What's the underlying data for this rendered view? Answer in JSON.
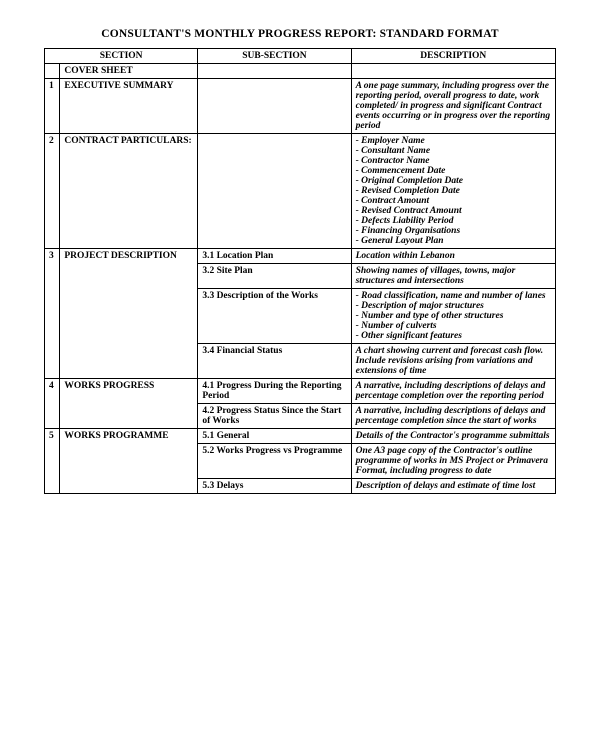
{
  "title": "CONSULTANT'S MONTHLY PROGRESS REPORT: STANDARD FORMAT",
  "headers": {
    "c1": "SECTION",
    "c2": "SUB-SECTION",
    "c3": "DESCRIPTION"
  },
  "cover": "COVER SHEET",
  "s1": {
    "num": "1",
    "name": "EXECUTIVE SUMMARY",
    "desc": "A one page summary, including progress over the reporting period, overall progress to date, work completed/ in progress and significant Contract events occurring or in progress over the reporting period"
  },
  "s2": {
    "num": "2",
    "name": "CONTRACT PARTICULARS:",
    "items": [
      "- Employer Name",
      "- Consultant Name",
      "- Contractor Name",
      "- Commencement Date",
      "- Original Completion Date",
      "- Revised Completion Date",
      "- Contract Amount",
      "- Revised Contract Amount",
      "- Defects Liability Period",
      "- Financing Organisations",
      "- General Layout Plan"
    ]
  },
  "s3": {
    "num": "3",
    "name": "PROJECT DESCRIPTION",
    "r1": {
      "sub": "3.1 Location Plan",
      "desc": "Location within Lebanon"
    },
    "r2": {
      "sub": "3.2 Site Plan",
      "desc": "Showing names of villages, towns, major structures and intersections"
    },
    "r3": {
      "sub": "3.3 Description of the Works",
      "items": [
        "- Road classification, name and number of lanes",
        "- Description of major structures",
        "- Number and type of other structures",
        "- Number of culverts",
        "- Other significant features"
      ]
    },
    "r4": {
      "sub": "3.4 Financial Status",
      "desc": "A chart showing current and forecast cash flow. Include revisions arising from variations and extensions of time"
    }
  },
  "s4": {
    "num": "4",
    "name": "WORKS PROGRESS",
    "r1": {
      "sub": "4.1 Progress During the Reporting Period",
      "desc": "A narrative, including descriptions of delays and percentage completion over the reporting period"
    },
    "r2": {
      "sub": "4.2 Progress Status Since the Start of Works",
      "desc": "A narrative, including descriptions of delays and percentage completion since the start of works"
    }
  },
  "s5": {
    "num": "5",
    "name": "WORKS PROGRAMME",
    "r1": {
      "sub": "5.1 General",
      "desc": "Details of the Contractor's programme submittals"
    },
    "r2": {
      "sub": "5.2 Works Progress vs Programme",
      "desc": "One A3 page copy of the Contractor's outline programme of works in MS Project or Primavera Format, including progress to date"
    },
    "r3": {
      "sub": "5.3 Delays",
      "desc": "Description of delays and estimate of time lost"
    }
  }
}
